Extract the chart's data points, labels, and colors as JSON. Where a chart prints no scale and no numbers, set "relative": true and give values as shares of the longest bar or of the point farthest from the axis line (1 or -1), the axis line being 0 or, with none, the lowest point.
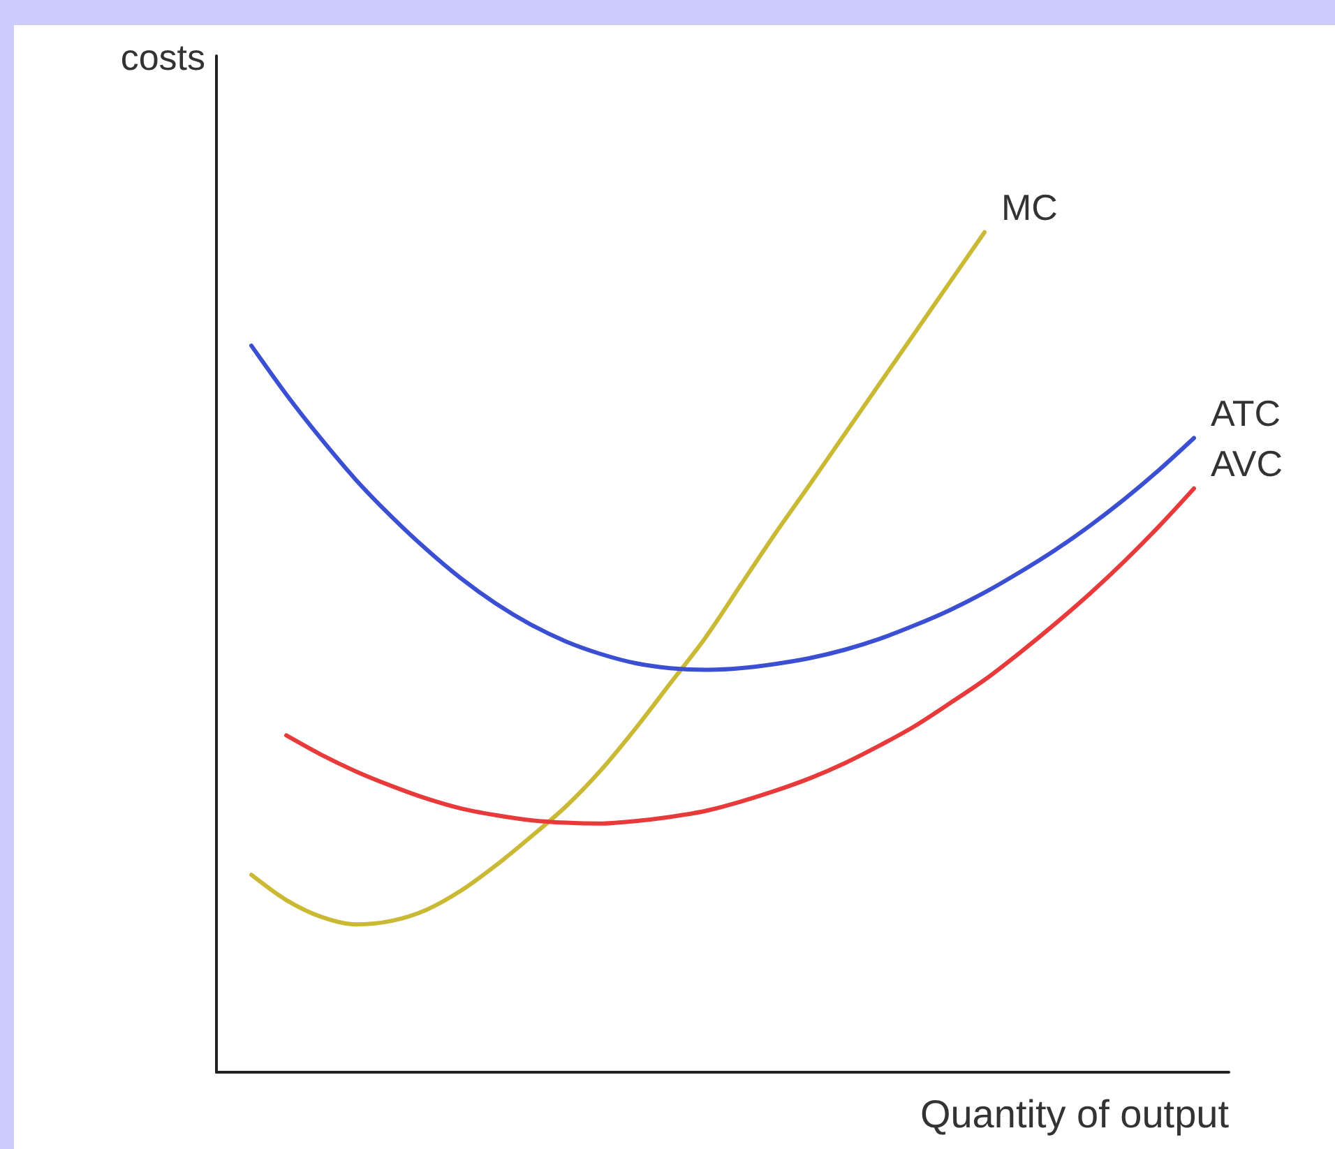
{
  "chart_data": {
    "type": "line",
    "relative": true,
    "xlabel": "Quantity of output",
    "ylabel": "costs",
    "legend": false,
    "grid": false,
    "marker": "none",
    "line_style": "solid",
    "categories": [
      null,
      null,
      null,
      null,
      null,
      null,
      null,
      null,
      null,
      null,
      null,
      null,
      null,
      null,
      null,
      null,
      null,
      null,
      null,
      null,
      null,
      null,
      null,
      null,
      null,
      null,
      null,
      null,
      null,
      null
    ],
    "series": [
      {
        "name": "MC",
        "color": "#c9b935",
        "values": [
          null,
          0.235,
          0.205,
          0.185,
          0.176,
          0.18,
          0.193,
          0.216,
          0.246,
          0.28,
          0.316,
          0.359,
          0.409,
          0.463,
          0.517,
          0.579,
          0.641,
          0.7,
          0.76,
          0.82,
          0.88,
          0.94,
          1,
          null,
          null,
          null,
          null,
          null,
          null,
          null
        ]
      },
      {
        "name": "ATC",
        "color": "#3a4fd2",
        "values": [
          null,
          0.865,
          0.807,
          0.754,
          0.705,
          0.662,
          0.623,
          0.588,
          0.558,
          0.533,
          0.513,
          0.498,
          0.487,
          0.481,
          0.479,
          0.481,
          0.486,
          0.493,
          0.503,
          0.516,
          0.532,
          0.55,
          0.571,
          0.595,
          0.621,
          0.65,
          0.682,
          0.717,
          0.755,
          null
        ]
      },
      {
        "name": "AVC",
        "color": "#e83a3a",
        "values": [
          null,
          null,
          0.401,
          0.378,
          0.358,
          0.341,
          0.326,
          0.314,
          0.306,
          0.3,
          0.297,
          0.296,
          0.299,
          0.304,
          0.311,
          0.322,
          0.335,
          0.35,
          0.368,
          0.389,
          0.412,
          0.439,
          0.467,
          0.499,
          0.533,
          0.569,
          0.608,
          0.65,
          0.695,
          null
        ]
      }
    ]
  }
}
